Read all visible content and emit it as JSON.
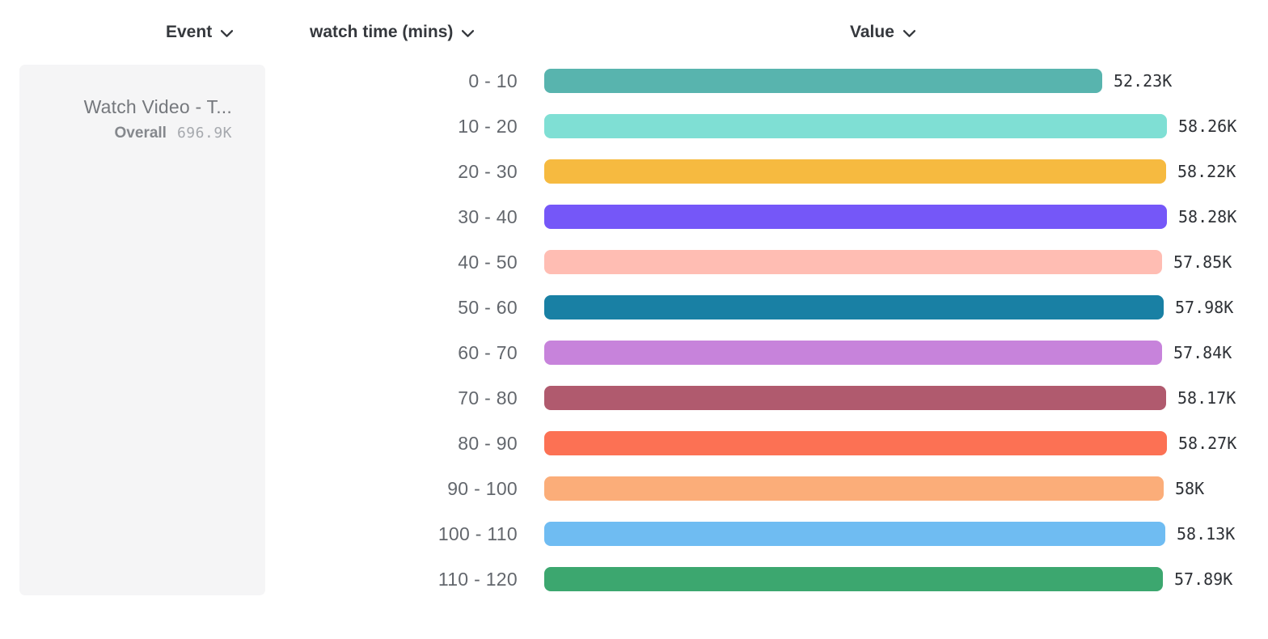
{
  "header": {
    "event": {
      "label": "Event"
    },
    "breakdown": {
      "label": "watch time (mins)"
    },
    "value": {
      "label": "Value"
    }
  },
  "legend": {
    "event_name": "Watch Video - T...",
    "overall_label": "Overall",
    "overall_value": "696.9K"
  },
  "chart_data": {
    "type": "bar",
    "orientation": "horizontal",
    "title": "",
    "xlabel": "Value",
    "ylabel": "watch time (mins)",
    "xlim": [
      0,
      58280
    ],
    "grid": false,
    "legend_position": "left",
    "categories": [
      "0 - 10",
      "10 - 20",
      "20 - 30",
      "30 - 40",
      "40 - 50",
      "50 - 60",
      "60 - 70",
      "70 - 80",
      "80 - 90",
      "90 - 100",
      "100 - 110",
      "110 - 120"
    ],
    "values": [
      52230,
      58260,
      58220,
      58280,
      57850,
      57980,
      57840,
      58170,
      58270,
      58000,
      58130,
      57890
    ],
    "value_labels": [
      "52.23K",
      "58.26K",
      "58.22K",
      "58.28K",
      "57.85K",
      "57.98K",
      "57.84K",
      "58.17K",
      "58.27K",
      "58K",
      "58.13K",
      "57.89K"
    ],
    "colors": [
      "#58B4AE",
      "#7FDFD4",
      "#F6BA40",
      "#7557F8",
      "#FFBDB3",
      "#1980A4",
      "#C783DB",
      "#B05A6E",
      "#FC7154",
      "#FBAD79",
      "#6FBCF2",
      "#3CA76F"
    ]
  }
}
